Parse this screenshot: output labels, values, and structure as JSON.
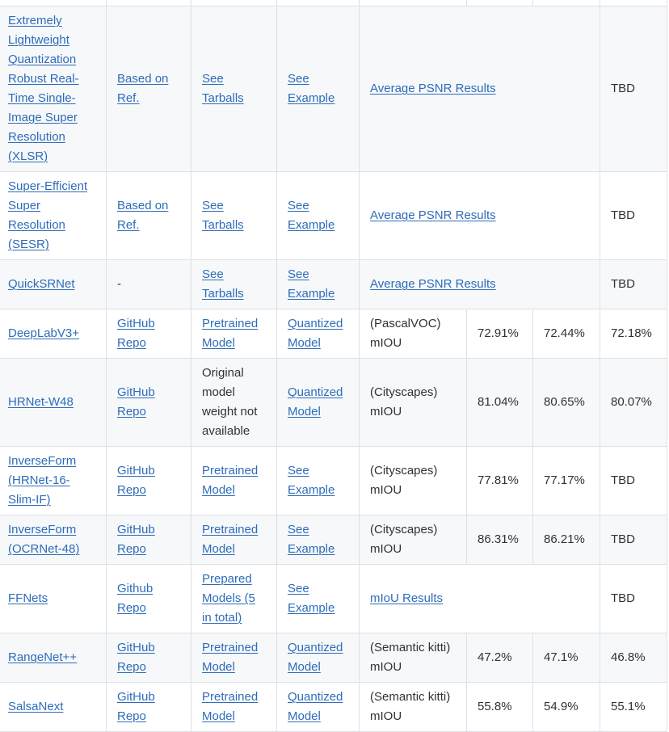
{
  "colors": {
    "link": "#2e6cb8",
    "text": "#2e3338",
    "row_stripe": "#f6f8fa",
    "row_plain": "#ffffff",
    "border": "#dde1e6"
  },
  "table": {
    "rows": [
      {
        "cells": [
          {
            "name": "model",
            "text": "Extremely Lightweight Quantization Robust Real-Time Single-Image Super Resolution (XLSR)",
            "link": true
          },
          {
            "name": "reference",
            "text": "Based on Ref.",
            "link": true
          },
          {
            "name": "weights",
            "text": "See Tarballs",
            "link": true
          },
          {
            "name": "example",
            "text": "See Example",
            "link": true
          },
          {
            "name": "results",
            "text": "Average PSNR Results",
            "link": true,
            "colspan": 3
          },
          {
            "name": "value-3",
            "text": "TBD",
            "link": false
          }
        ]
      },
      {
        "cells": [
          {
            "name": "model",
            "text": "Super-Efficient Super Resolution (SESR)",
            "link": true
          },
          {
            "name": "reference",
            "text": "Based on Ref.",
            "link": true
          },
          {
            "name": "weights",
            "text": "See Tarballs",
            "link": true
          },
          {
            "name": "example",
            "text": "See Example",
            "link": true
          },
          {
            "name": "results",
            "text": "Average PSNR Results",
            "link": true,
            "colspan": 3
          },
          {
            "name": "value-3",
            "text": "TBD",
            "link": false
          }
        ]
      },
      {
        "cells": [
          {
            "name": "model",
            "text": "QuickSRNet",
            "link": true
          },
          {
            "name": "reference",
            "text": "-",
            "link": false
          },
          {
            "name": "weights",
            "text": "See Tarballs",
            "link": true
          },
          {
            "name": "example",
            "text": "See Example",
            "link": true
          },
          {
            "name": "results",
            "text": "Average PSNR Results",
            "link": true,
            "colspan": 3
          },
          {
            "name": "value-3",
            "text": "TBD",
            "link": false
          }
        ]
      },
      {
        "cells": [
          {
            "name": "model",
            "text": "DeepLabV3+",
            "link": true
          },
          {
            "name": "reference",
            "text": "GitHub Repo",
            "link": true
          },
          {
            "name": "weights",
            "text": "Pretrained Model",
            "link": true
          },
          {
            "name": "example",
            "text": "Quantized Model",
            "link": true
          },
          {
            "name": "metric",
            "text": "(PascalVOC) mIOU",
            "link": false
          },
          {
            "name": "value-1",
            "text": "72.91%",
            "link": false
          },
          {
            "name": "value-2",
            "text": "72.44%",
            "link": false
          },
          {
            "name": "value-3",
            "text": "72.18%",
            "link": false
          }
        ]
      },
      {
        "cells": [
          {
            "name": "model",
            "text": "HRNet-W48",
            "link": true
          },
          {
            "name": "reference",
            "text": "GitHub Repo",
            "link": true
          },
          {
            "name": "weights",
            "text": "Original model weight not available",
            "link": false
          },
          {
            "name": "example",
            "text": "Quantized Model",
            "link": true
          },
          {
            "name": "metric",
            "text": "(Cityscapes) mIOU",
            "link": false
          },
          {
            "name": "value-1",
            "text": "81.04%",
            "link": false
          },
          {
            "name": "value-2",
            "text": "80.65%",
            "link": false
          },
          {
            "name": "value-3",
            "text": "80.07%",
            "link": false
          }
        ]
      },
      {
        "cells": [
          {
            "name": "model",
            "text": "InverseForm (HRNet-16-Slim-IF)",
            "link": true
          },
          {
            "name": "reference",
            "text": "GitHub Repo",
            "link": true
          },
          {
            "name": "weights",
            "text": "Pretrained Model",
            "link": true
          },
          {
            "name": "example",
            "text": "See Example",
            "link": true
          },
          {
            "name": "metric",
            "text": "(Cityscapes) mIOU",
            "link": false
          },
          {
            "name": "value-1",
            "text": "77.81%",
            "link": false
          },
          {
            "name": "value-2",
            "text": "77.17%",
            "link": false
          },
          {
            "name": "value-3",
            "text": "TBD",
            "link": false
          }
        ]
      },
      {
        "cells": [
          {
            "name": "model",
            "text": "InverseForm (OCRNet-48)",
            "link": true
          },
          {
            "name": "reference",
            "text": "GitHub Repo",
            "link": true
          },
          {
            "name": "weights",
            "text": "Pretrained Model",
            "link": true
          },
          {
            "name": "example",
            "text": "See Example",
            "link": true
          },
          {
            "name": "metric",
            "text": "(Cityscapes) mIOU",
            "link": false
          },
          {
            "name": "value-1",
            "text": "86.31%",
            "link": false
          },
          {
            "name": "value-2",
            "text": "86.21%",
            "link": false
          },
          {
            "name": "value-3",
            "text": "TBD",
            "link": false
          }
        ]
      },
      {
        "cells": [
          {
            "name": "model",
            "text": "FFNets",
            "link": true
          },
          {
            "name": "reference",
            "text": "Github Repo",
            "link": true
          },
          {
            "name": "weights",
            "text": "Prepared Models (5 in total)",
            "link": true
          },
          {
            "name": "example",
            "text": "See Example",
            "link": true
          },
          {
            "name": "results",
            "text": "mIoU Results",
            "link": true,
            "colspan": 3
          },
          {
            "name": "value-3",
            "text": "TBD",
            "link": false
          }
        ]
      },
      {
        "cells": [
          {
            "name": "model",
            "text": "RangeNet++",
            "link": true
          },
          {
            "name": "reference",
            "text": "GitHub Repo",
            "link": true
          },
          {
            "name": "weights",
            "text": "Pretrained Model",
            "link": true
          },
          {
            "name": "example",
            "text": "Quantized Model",
            "link": true
          },
          {
            "name": "metric",
            "text": "(Semantic kitti) mIOU",
            "link": false
          },
          {
            "name": "value-1",
            "text": "47.2%",
            "link": false
          },
          {
            "name": "value-2",
            "text": "47.1%",
            "link": false
          },
          {
            "name": "value-3",
            "text": "46.8%",
            "link": false
          }
        ]
      },
      {
        "cells": [
          {
            "name": "model",
            "text": "SalsaNext",
            "link": true
          },
          {
            "name": "reference",
            "text": "GitHub Repo",
            "link": true
          },
          {
            "name": "weights",
            "text": "Pretrained Model",
            "link": true
          },
          {
            "name": "example",
            "text": "Quantized Model",
            "link": true
          },
          {
            "name": "metric",
            "text": "(Semantic kitti) mIOU",
            "link": false
          },
          {
            "name": "value-1",
            "text": "55.8%",
            "link": false
          },
          {
            "name": "value-2",
            "text": "54.9%",
            "link": false
          },
          {
            "name": "value-3",
            "text": "55.1%",
            "link": false
          }
        ]
      }
    ]
  }
}
